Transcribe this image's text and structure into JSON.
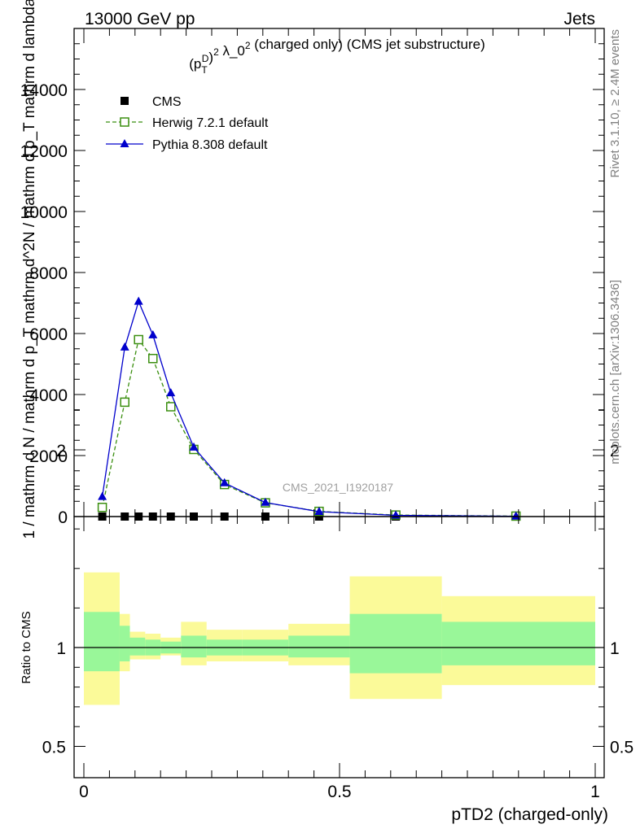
{
  "header": {
    "left": "13000 GeV pp",
    "right": "Jets"
  },
  "side_labels": {
    "rivet": "Rivet 3.1.10, ≥ 2.4M events",
    "mcplots": "mcplots.cern.ch [arXiv:1306.3436]"
  },
  "chart_data": {
    "type": "line",
    "title": "(pTD)2 λ_02 (charged only) (CMS jet substructure)",
    "xlabel": "pTD2 (charged-only)",
    "ylabel": "1 / mathrm d N / mathrm d p_T mathrm d^2N / mathrm d p_T mathrm d lambda",
    "watermark": "CMS_2021_I1920187",
    "xlim": [
      0,
      1
    ],
    "ylim": [
      0,
      16000
    ],
    "x_ticks": [
      "0",
      "0.5",
      "1"
    ],
    "y_ticks": [
      "0",
      "2000",
      "4000",
      "6000",
      "8000",
      "10000",
      "12000",
      "14000"
    ],
    "grid": false,
    "legend_position": "top-left",
    "x": [
      0.036,
      0.08,
      0.107,
      0.135,
      0.17,
      0.215,
      0.275,
      0.355,
      0.46,
      0.61,
      0.845
    ],
    "bin_edges": [
      0.0,
      0.07,
      0.09,
      0.12,
      0.15,
      0.19,
      0.24,
      0.31,
      0.4,
      0.52,
      0.7,
      1.0
    ],
    "series": [
      {
        "name": "CMS",
        "color": "#000000",
        "marker": "filled-square",
        "values": [
          0,
          0,
          0,
          0,
          0,
          0,
          0,
          0,
          0,
          0,
          0
        ]
      },
      {
        "name": "Herwig 7.2.1 default",
        "color": "#3b8f10",
        "marker": "open-square",
        "line": "dashed",
        "values": [
          300,
          3750,
          5800,
          5180,
          3600,
          2200,
          1050,
          450,
          170,
          50,
          15
        ]
      },
      {
        "name": "Pythia 8.308 default",
        "color": "#0000cc",
        "marker": "filled-triangle",
        "line": "solid",
        "values": [
          650,
          5550,
          7050,
          5950,
          4050,
          2270,
          1100,
          460,
          160,
          40,
          10
        ]
      }
    ],
    "ratio_panel": {
      "ylabel": "Ratio to CMS",
      "ylim": [
        0.4,
        2.4
      ],
      "y_ticks": [
        "0.5",
        "1",
        "2"
      ],
      "reference": 1,
      "band_colors": {
        "inner": "#99f799",
        "outer": "#fbfa99"
      },
      "inner_band": [
        [
          0.88,
          1.18
        ],
        [
          0.93,
          1.11
        ],
        [
          0.96,
          1.05
        ],
        [
          0.96,
          1.04
        ],
        [
          0.97,
          1.03
        ],
        [
          0.95,
          1.06
        ],
        [
          0.96,
          1.04
        ],
        [
          0.96,
          1.04
        ],
        [
          0.95,
          1.06
        ],
        [
          0.87,
          1.17
        ],
        [
          0.91,
          1.13
        ]
      ],
      "outer_band": [
        [
          0.71,
          1.38
        ],
        [
          0.88,
          1.17
        ],
        [
          0.94,
          1.08
        ],
        [
          0.94,
          1.07
        ],
        [
          0.96,
          1.05
        ],
        [
          0.91,
          1.13
        ],
        [
          0.93,
          1.09
        ],
        [
          0.93,
          1.09
        ],
        [
          0.91,
          1.12
        ],
        [
          0.74,
          1.36
        ],
        [
          0.81,
          1.26
        ]
      ]
    }
  }
}
